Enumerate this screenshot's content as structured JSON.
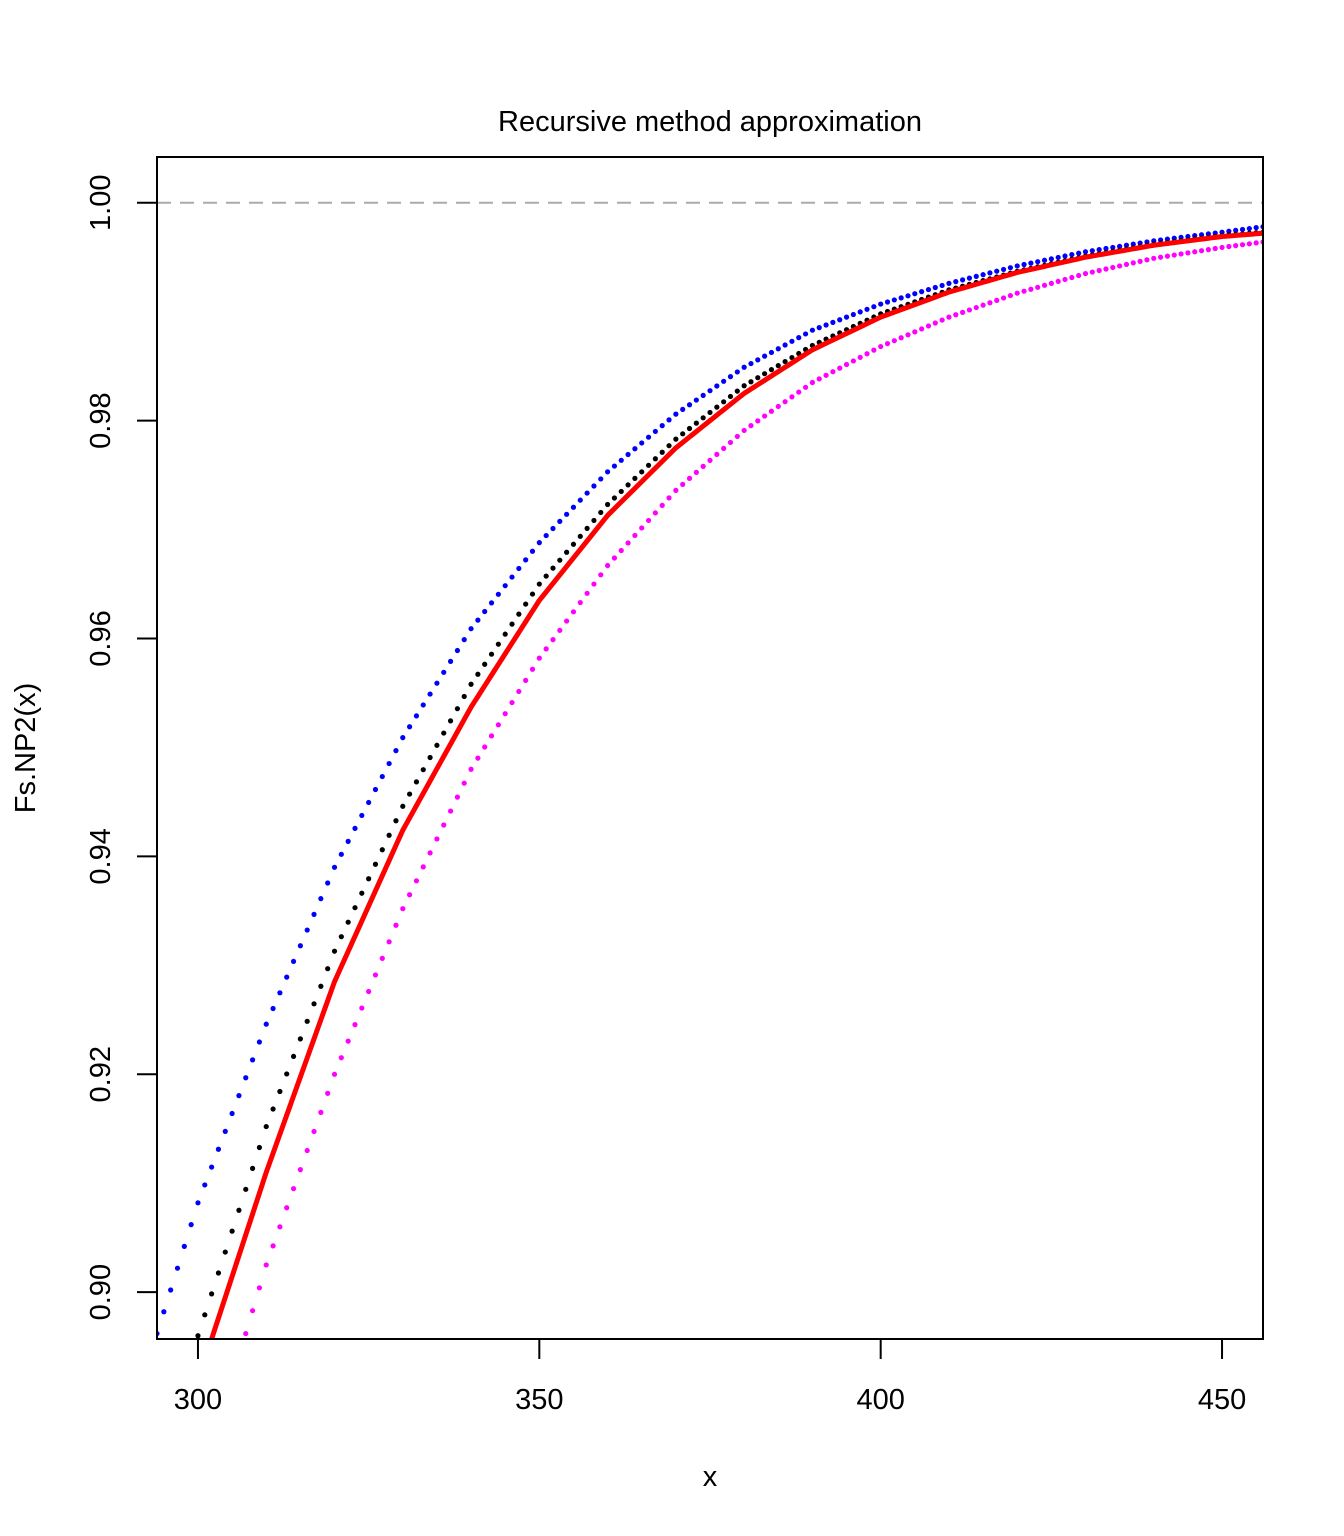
{
  "chart_data": {
    "type": "line",
    "title": "Recursive method approximation",
    "xlabel": "x",
    "ylabel": "Fs.NP2(x)",
    "xlim": [
      294,
      456
    ],
    "ylim": [
      0.8957,
      1.0042
    ],
    "x_ticks": [
      300,
      350,
      400,
      450
    ],
    "y_ticks": [
      0.9,
      0.92,
      0.94,
      0.96,
      0.98,
      1.0
    ],
    "x_tick_labels": [
      "300",
      "350",
      "400",
      "450"
    ],
    "y_tick_labels": [
      "0.90",
      "0.92",
      "0.94",
      "0.96",
      "0.98",
      "1.00"
    ],
    "reference_line": {
      "y": 1.0,
      "style": "dashed",
      "color": "#aaaaaa"
    },
    "grid": false,
    "legend": "none",
    "series": [
      {
        "style": "dots",
        "color": "#0000ff",
        "step": 1,
        "x": [
          294,
          300,
          310,
          320,
          330,
          340,
          350,
          360,
          370,
          380,
          390,
          400,
          410,
          420,
          430,
          440,
          450,
          456
        ],
        "values": [
          0.8962,
          0.9082,
          0.9246,
          0.939,
          0.9509,
          0.9609,
          0.9688,
          0.9753,
          0.9806,
          0.9849,
          0.9883,
          0.9907,
          0.9926,
          0.9942,
          0.9955,
          0.9965,
          0.9973,
          0.9978
        ]
      },
      {
        "style": "dots",
        "color": "#000000",
        "step": 1,
        "x": [
          300,
          310,
          320,
          330,
          340,
          350,
          360,
          370,
          380,
          390,
          400,
          410,
          420,
          430,
          440,
          450,
          456
        ],
        "values": [
          0.896,
          0.9152,
          0.9313,
          0.9446,
          0.9558,
          0.965,
          0.9723,
          0.9783,
          0.9832,
          0.9869,
          0.9898,
          0.992,
          0.9937,
          0.9951,
          0.9962,
          0.997,
          0.9973
        ]
      },
      {
        "style": "line",
        "color": "#ff0000",
        "x": [
          302,
          310,
          320,
          330,
          340,
          350,
          360,
          370,
          380,
          390,
          400,
          410,
          420,
          430,
          440,
          450,
          456
        ],
        "values": [
          0.8957,
          0.911,
          0.9285,
          0.9424,
          0.9537,
          0.9635,
          0.9713,
          0.9775,
          0.9825,
          0.9865,
          0.9895,
          0.9918,
          0.9936,
          0.995,
          0.9961,
          0.9969,
          0.9972
        ]
      },
      {
        "style": "dots",
        "color": "#ff00ff",
        "step": 1,
        "x": [
          307,
          310,
          320,
          330,
          340,
          350,
          360,
          370,
          380,
          390,
          400,
          410,
          420,
          430,
          440,
          450,
          456
        ],
        "values": [
          0.8962,
          0.9025,
          0.92,
          0.9352,
          0.948,
          0.9582,
          0.9667,
          0.9736,
          0.9791,
          0.9835,
          0.9868,
          0.9895,
          0.9917,
          0.9935,
          0.9949,
          0.9959,
          0.9964
        ]
      }
    ]
  }
}
